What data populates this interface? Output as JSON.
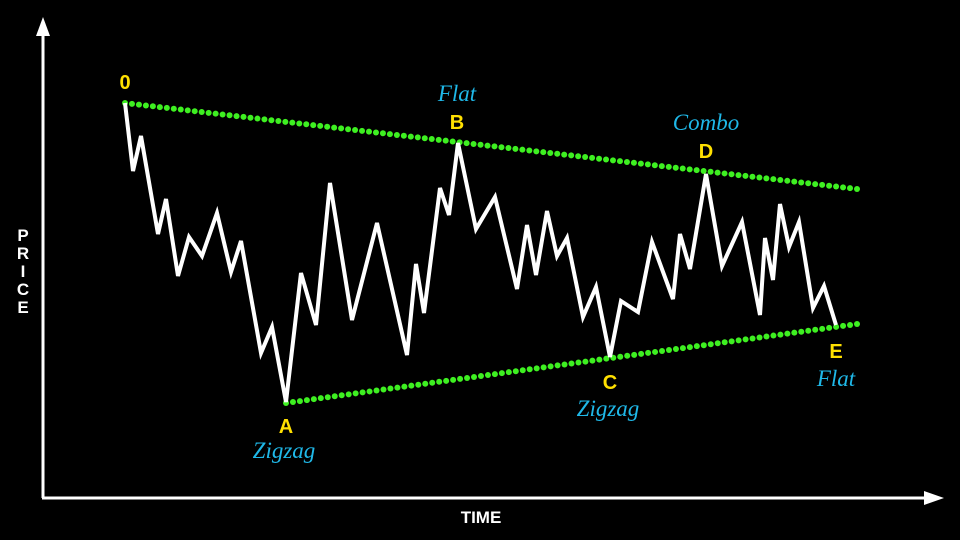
{
  "axes": {
    "y_label": [
      "P",
      "R",
      "I",
      "C",
      "E"
    ],
    "x_label": "TIME"
  },
  "points": {
    "p0": "0",
    "a": "A",
    "b": "B",
    "c": "C",
    "d": "D",
    "e": "E"
  },
  "waves": {
    "a": "Zigzag",
    "b": "Flat",
    "c": "Zigzag",
    "d": "Combo",
    "e": "Flat"
  },
  "colors": {
    "background": "#000000",
    "price_line": "#ffffff",
    "trendline": "#3ef021",
    "point_label": "#ffe000",
    "wave_label": "#1fb8e8",
    "axis": "#ffffff"
  }
}
